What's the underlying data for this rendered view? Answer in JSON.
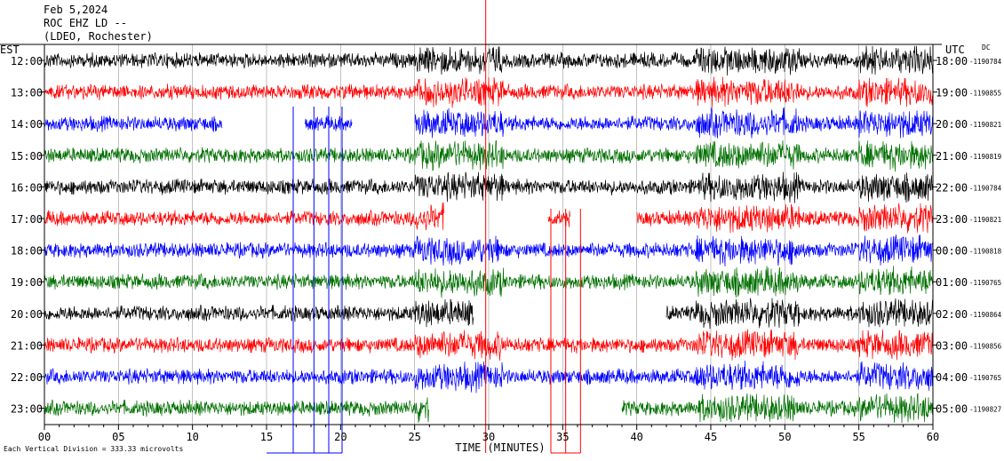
{
  "header": {
    "date": "Feb 5,2024",
    "station": "ROC EHZ LD --",
    "network": "(LDEO, Rochester)"
  },
  "chart_data": {
    "type": "line",
    "left_axis_title": "EST",
    "right_axis_title": "UTC",
    "dc_title": "DC",
    "x_axis_title": "TIME (MINUTES)",
    "x_ticks": [
      "00",
      "05",
      "10",
      "15",
      "20",
      "25",
      "30",
      "35",
      "40",
      "45",
      "50",
      "55",
      "60"
    ],
    "xlim": [
      0,
      60
    ],
    "scale_note": "Each Vertical Division =  333.33 microvolts",
    "series_colors": [
      "#000000",
      "#ff0000",
      "#0000ff",
      "#007000"
    ],
    "rows": [
      {
        "est": "12:00",
        "utc": "18:00",
        "dc": "-1190784",
        "color": "#000000",
        "gaps": []
      },
      {
        "est": "13:00",
        "utc": "19:00",
        "dc": "-1190855",
        "color": "#ff0000",
        "gaps": []
      },
      {
        "est": "14:00",
        "utc": "20:00",
        "dc": "-1190821",
        "color": "#0000ff",
        "gaps": [
          [
            12,
            17.6
          ],
          [
            20.8,
            25
          ]
        ]
      },
      {
        "est": "15:00",
        "utc": "21:00",
        "dc": "-1190819",
        "color": "#007000",
        "gaps": []
      },
      {
        "est": "16:00",
        "utc": "22:00",
        "dc": "-1190784",
        "color": "#000000",
        "gaps": []
      },
      {
        "est": "17:00",
        "utc": "23:00",
        "dc": "-1190821",
        "color": "#ff0000",
        "gaps": [
          [
            27,
            34
          ],
          [
            35.5,
            40
          ]
        ]
      },
      {
        "est": "18:00",
        "utc": "00:00",
        "dc": "-1190818",
        "color": "#0000ff",
        "gaps": []
      },
      {
        "est": "19:00",
        "utc": "01:00",
        "dc": "-1190765",
        "color": "#007000",
        "gaps": []
      },
      {
        "est": "20:00",
        "utc": "02:00",
        "dc": "-1190864",
        "color": "#000000",
        "gaps": [
          [
            29,
            42
          ]
        ]
      },
      {
        "est": "21:00",
        "utc": "03:00",
        "dc": "-1190856",
        "color": "#ff0000",
        "gaps": []
      },
      {
        "est": "22:00",
        "utc": "04:00",
        "dc": "-1190765",
        "color": "#0000ff",
        "gaps": []
      },
      {
        "est": "23:00",
        "utc": "05:00",
        "dc": "-1190827",
        "color": "#007000",
        "gaps": [
          [
            26,
            39
          ]
        ]
      }
    ],
    "noisy_windows": [
      [
        25,
        31
      ],
      [
        44,
        51
      ],
      [
        55,
        60
      ]
    ],
    "spike_minutes": [
      16.8,
      18.2,
      19.2,
      20.1,
      29.8,
      34.2,
      35.2,
      36.2
    ],
    "grid": true
  }
}
